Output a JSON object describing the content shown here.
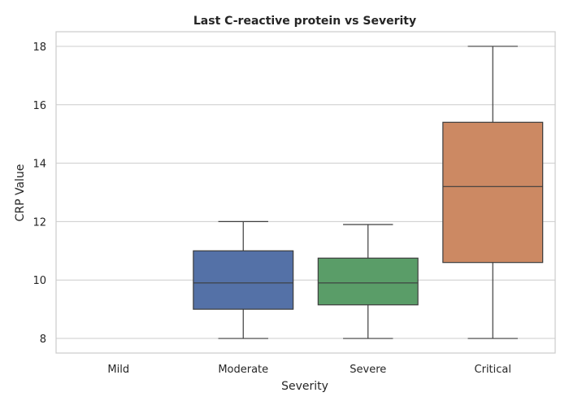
{
  "chart_data": {
    "type": "box",
    "title": "Last C-reactive protein vs Severity",
    "xlabel": "Severity",
    "ylabel": "CRP Value",
    "ylim": [
      7.5,
      18.5
    ],
    "yticks": [
      8,
      10,
      12,
      14,
      16,
      18
    ],
    "grid": "horizontal",
    "categories": [
      "Mild",
      "Moderate",
      "Severe",
      "Critical"
    ],
    "boxes": [
      {
        "category": "Mild",
        "empty": true
      },
      {
        "category": "Moderate",
        "whisker_low": 8.0,
        "q1": 9.0,
        "median": 9.9,
        "q3": 11.0,
        "whisker_high": 12.0,
        "color": "#5471a7"
      },
      {
        "category": "Severe",
        "whisker_low": 8.0,
        "q1": 9.15,
        "median": 9.9,
        "q3": 10.75,
        "whisker_high": 11.9,
        "color": "#5a9d68"
      },
      {
        "category": "Critical",
        "whisker_low": 8.0,
        "q1": 10.6,
        "median": 13.2,
        "q3": 15.4,
        "whisker_high": 18.0,
        "color": "#cc8963"
      }
    ]
  }
}
